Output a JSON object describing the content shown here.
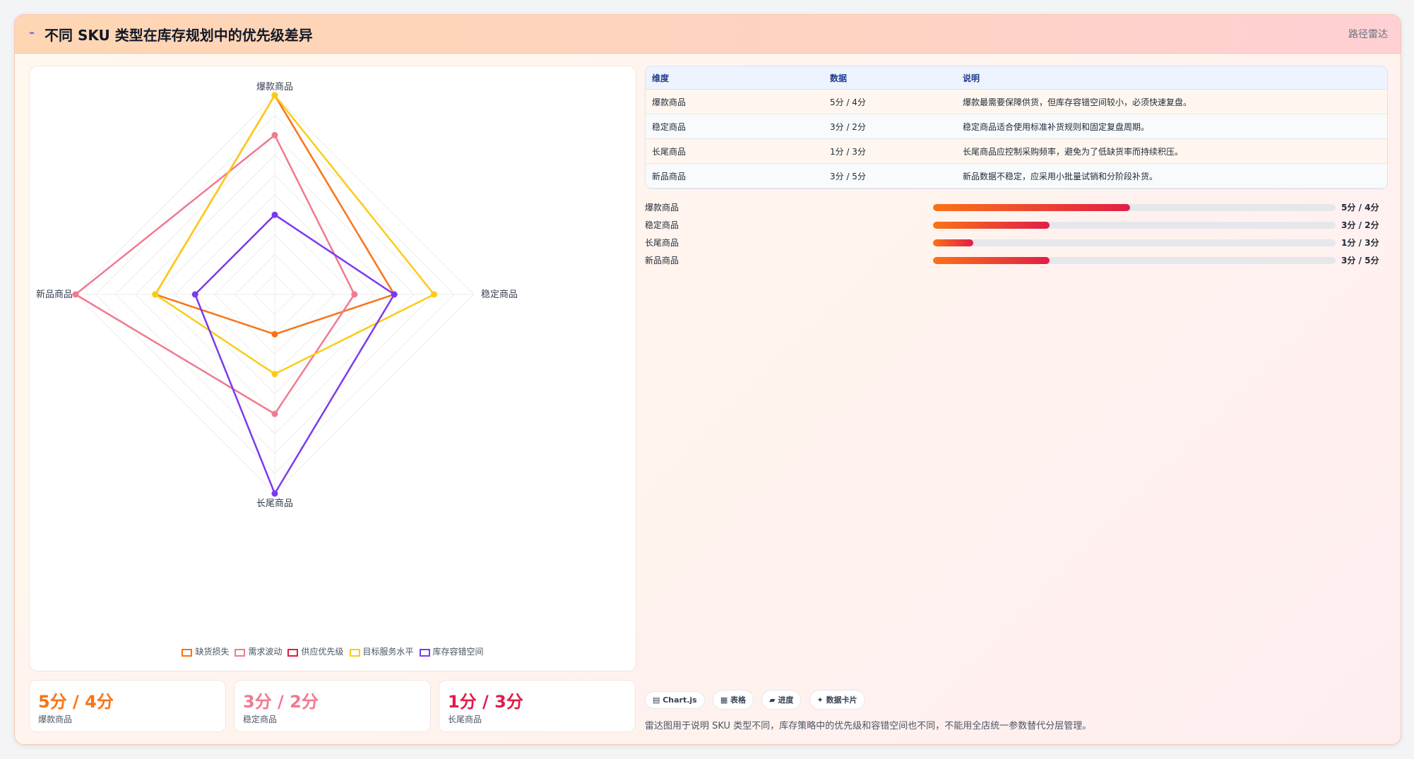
{
  "header": {
    "logo": "⌁",
    "title": "不同 SKU 类型在库存规划中的优先级差异",
    "tag": "路径雷达"
  },
  "chart_data": {
    "type": "radar",
    "axes": [
      "爆款商品",
      "稳定商品",
      "长尾商品",
      "新品商品"
    ],
    "range": [
      0,
      5
    ],
    "series": [
      {
        "name": "缺货损失",
        "values": [
          5,
          3,
          1,
          3
        ],
        "color": "#f97316"
      },
      {
        "name": "需求波动",
        "values": [
          4,
          2,
          3,
          5
        ],
        "color": "#f07a90"
      },
      {
        "name": "供应优先级",
        "values": [
          null,
          null,
          null,
          null
        ],
        "color": "#e11d48"
      },
      {
        "name": "目标服务水平",
        "values": [
          5,
          4,
          2,
          3
        ],
        "color": "#facc15"
      },
      {
        "name": "库存容错空间",
        "values": [
          2,
          3,
          5,
          2
        ],
        "color": "#7c3aed"
      }
    ],
    "legend_position": "bottom"
  },
  "kpis": [
    {
      "value": "5分 / 4分",
      "label": "爆款商品",
      "color": "#f97316"
    },
    {
      "value": "3分 / 2分",
      "label": "稳定商品",
      "color": "#f07a90"
    },
    {
      "value": "1分 / 3分",
      "label": "长尾商品",
      "color": "#e11d48"
    }
  ],
  "table": {
    "headers": [
      "维度",
      "数据",
      "说明"
    ],
    "rows": [
      [
        "爆款商品",
        "5分 / 4分",
        "爆款最需要保障供货，但库存容错空间较小，必须快速复盘。"
      ],
      [
        "稳定商品",
        "3分 / 2分",
        "稳定商品适合使用标准补货规则和固定复盘周期。"
      ],
      [
        "长尾商品",
        "1分 / 3分",
        "长尾商品应控制采购频率，避免为了低缺货率而持续积压。"
      ],
      [
        "新品商品",
        "3分 / 5分",
        "新品数据不稳定，应采用小批量试销和分阶段补货。"
      ]
    ]
  },
  "bars": [
    {
      "label": "爆款商品",
      "value_text": "5分 / 4分",
      "fraction": 0.49
    },
    {
      "label": "稳定商品",
      "value_text": "3分 / 2分",
      "fraction": 0.29
    },
    {
      "label": "长尾商品",
      "value_text": "1分 / 3分",
      "fraction": 0.1
    },
    {
      "label": "新品商品",
      "value_text": "3分 / 5分",
      "fraction": 0.29
    }
  ],
  "chips": [
    "▤ Chart.js",
    "▦ 表格",
    "▰ 进度",
    "✦ 数据卡片"
  ],
  "note": "雷达图用于说明 SKU 类型不同，库存策略中的优先级和容错空间也不同，不能用全店统一参数替代分层管理。"
}
